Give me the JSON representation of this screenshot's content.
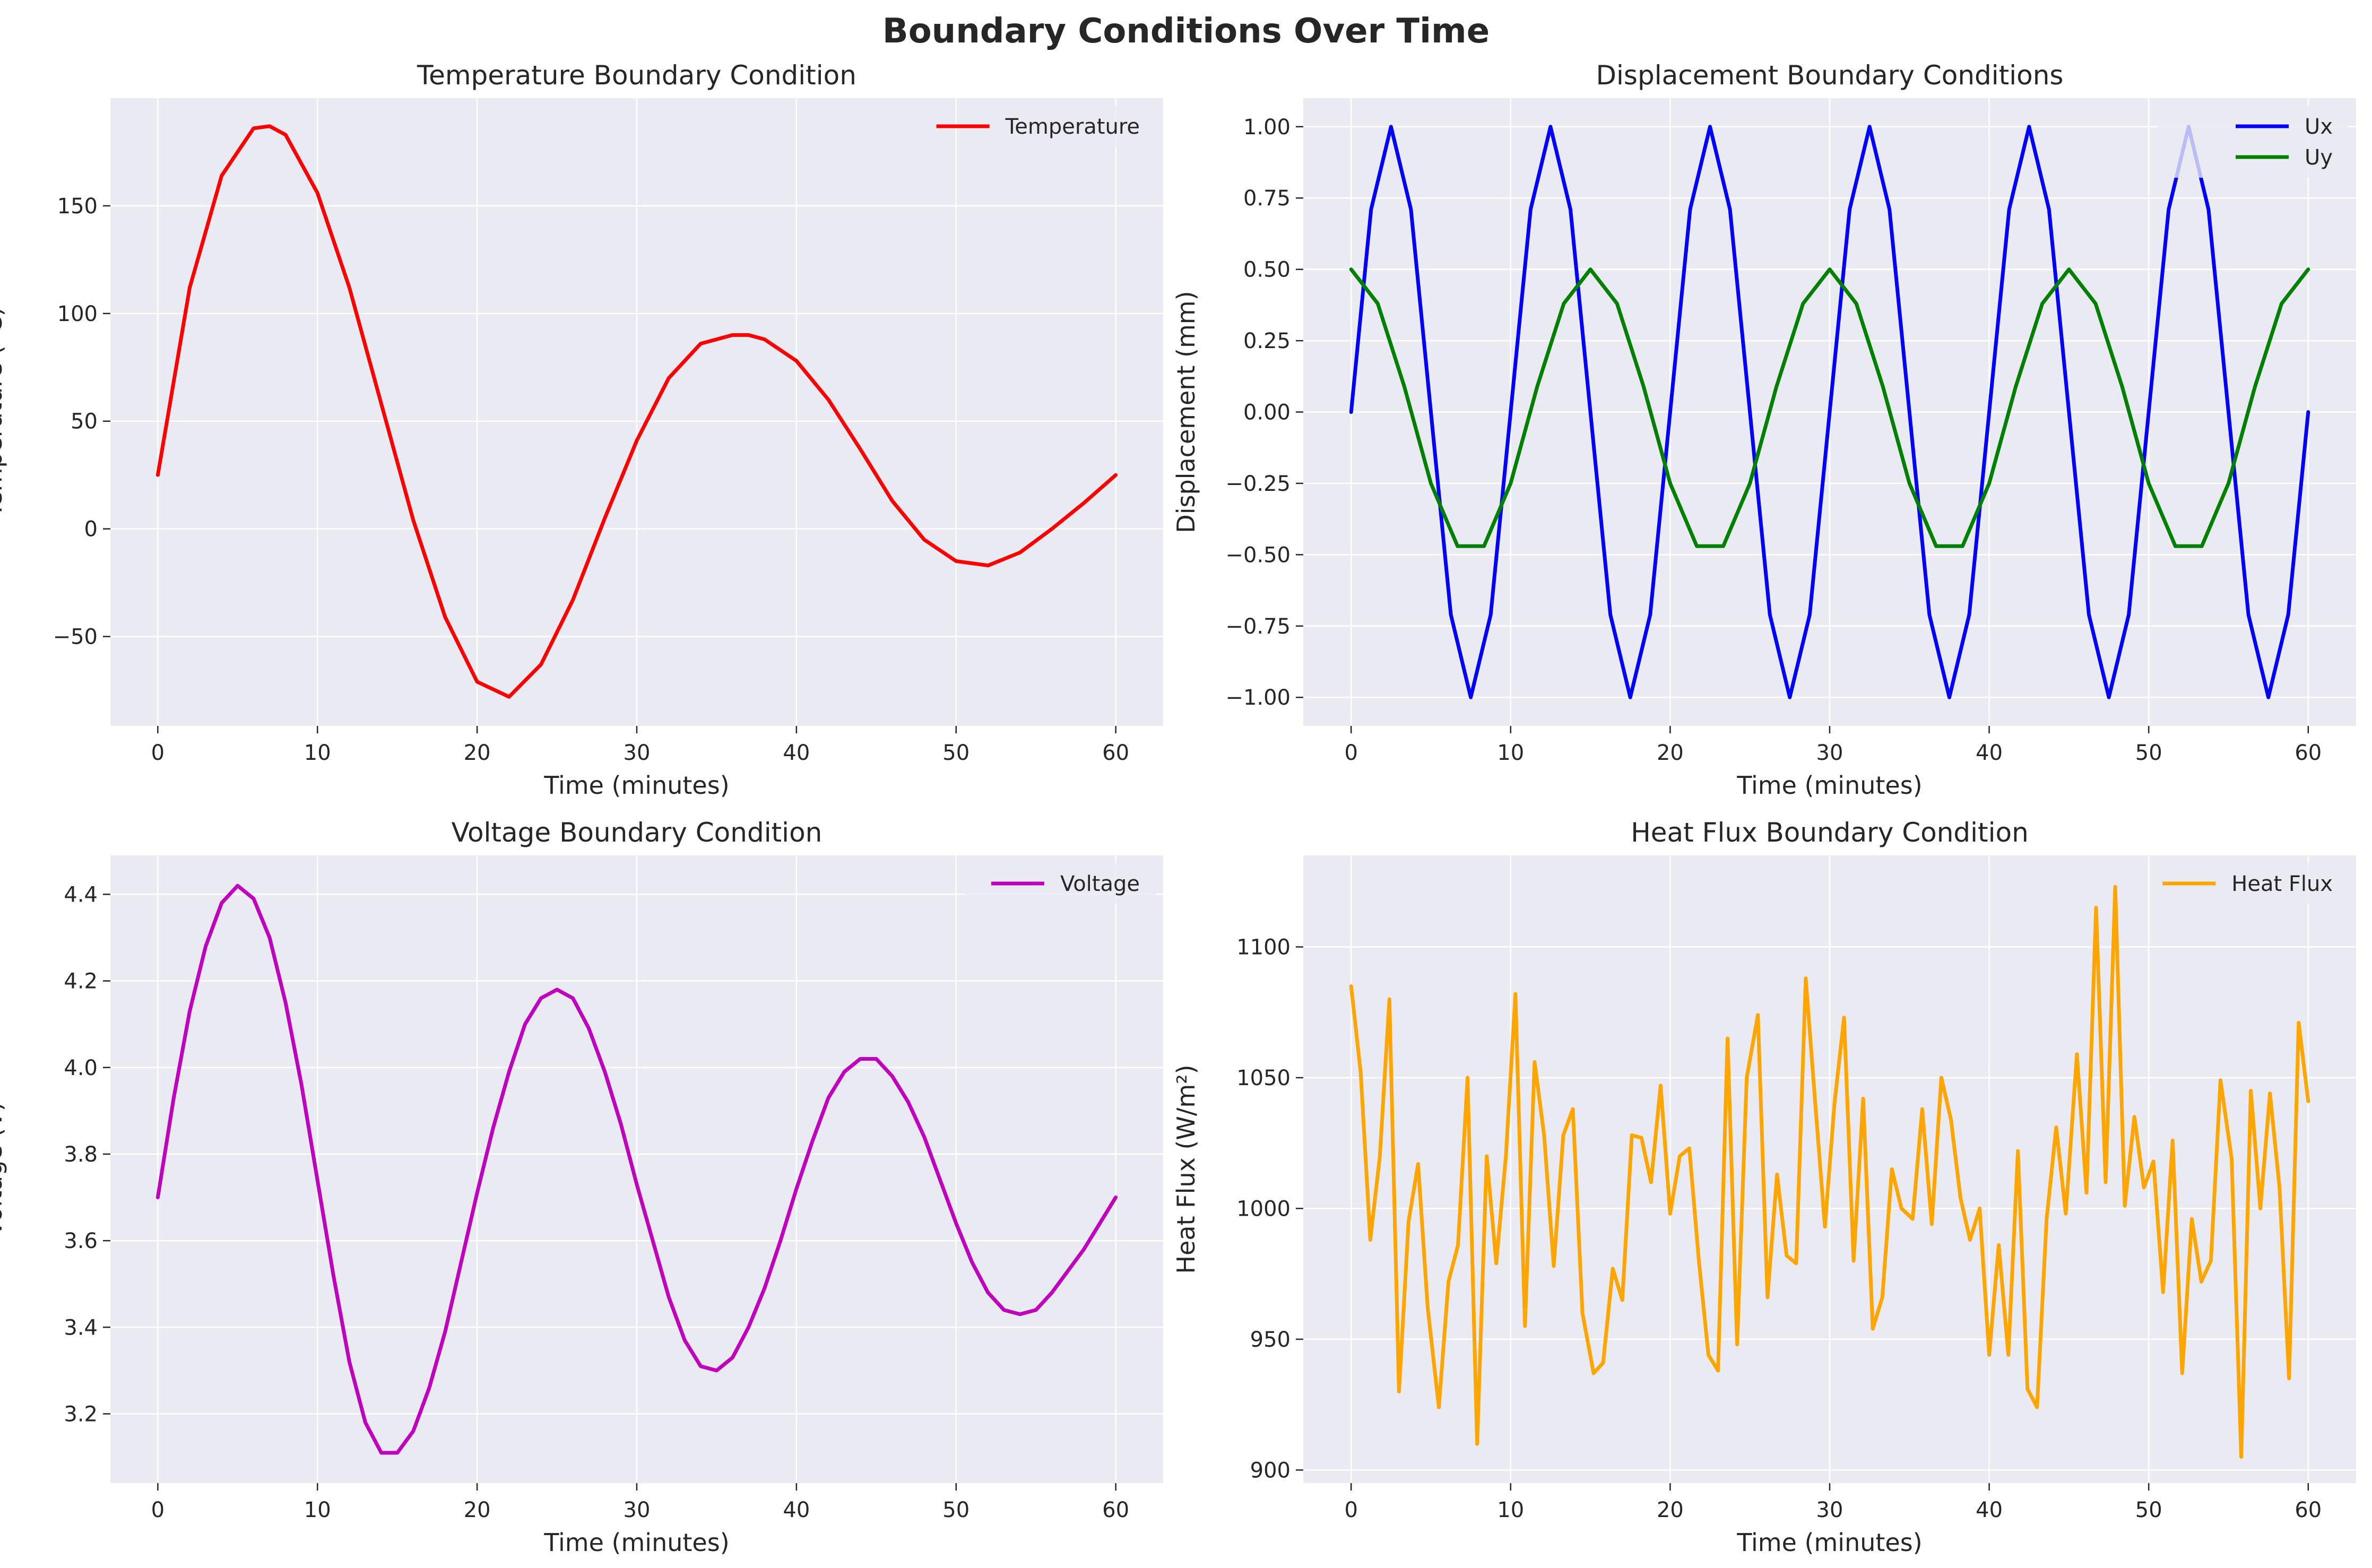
{
  "figure": {
    "title": "Boundary Conditions Over Time"
  },
  "chart_data": [
    {
      "type": "line",
      "title": "Temperature Boundary Condition",
      "xlabel": "Time (minutes)",
      "ylabel": "Temperature (°C)",
      "xlim": [
        -2.97,
        62.97
      ],
      "ylim": [
        -91.5,
        200
      ],
      "xticks": [
        0,
        10,
        20,
        30,
        40,
        50,
        60
      ],
      "xtick_labels": [
        "0",
        "10",
        "20",
        "30",
        "40",
        "50",
        "60"
      ],
      "yticks": [
        -50,
        0,
        50,
        100,
        150
      ],
      "ytick_labels": [
        "−50",
        "0",
        "50",
        "100",
        "150"
      ],
      "grid": true,
      "legend_loc": "upper right",
      "series": [
        {
          "name": "Temperature",
          "color": "#ff0000",
          "x": [
            0,
            2,
            4,
            6,
            7,
            8,
            10,
            12,
            14,
            16,
            18,
            20,
            22,
            24,
            26,
            28,
            30,
            32,
            34,
            36,
            37,
            38,
            40,
            42,
            44,
            46,
            48,
            50,
            52,
            54,
            56,
            58,
            60
          ],
          "y": [
            25,
            112,
            164,
            186,
            187,
            183,
            156,
            112,
            58,
            4,
            -41,
            -71,
            -78,
            -63,
            -33,
            5,
            41,
            70,
            86,
            90,
            90,
            88,
            78,
            60,
            37,
            13,
            -5,
            -15,
            -17,
            -11,
            0,
            12,
            25
          ]
        }
      ]
    },
    {
      "type": "line",
      "title": "Displacement Boundary Conditions",
      "xlabel": "Time (minutes)",
      "ylabel": "Displacement (mm)",
      "xlim": [
        -3,
        63
      ],
      "ylim": [
        -1.1,
        1.1
      ],
      "xticks": [
        0,
        10,
        20,
        30,
        40,
        50,
        60
      ],
      "xtick_labels": [
        "0",
        "10",
        "20",
        "30",
        "40",
        "50",
        "60"
      ],
      "yticks": [
        -1.0,
        -0.75,
        -0.5,
        -0.25,
        0.0,
        0.25,
        0.5,
        0.75,
        1.0
      ],
      "ytick_labels": [
        "−1.00",
        "−0.75",
        "−0.50",
        "−0.25",
        "0.00",
        "0.25",
        "0.50",
        "0.75",
        "1.00"
      ],
      "grid": true,
      "legend_loc": "upper right",
      "series": [
        {
          "name": "Ux",
          "color": "#0000ff",
          "x": [
            0,
            1.25,
            2.5,
            3.75,
            5,
            6.25,
            7.5,
            8.75,
            10,
            11.25,
            12.5,
            13.75,
            15,
            16.25,
            17.5,
            18.75,
            20,
            21.25,
            22.5,
            23.75,
            25,
            26.25,
            27.5,
            28.75,
            30,
            31.25,
            32.5,
            33.75,
            35,
            36.25,
            37.5,
            38.75,
            40,
            41.25,
            42.5,
            43.75,
            45,
            46.25,
            47.5,
            48.75,
            50,
            51.25,
            52.5,
            53.75,
            55,
            56.25,
            57.5,
            58.75,
            60
          ],
          "y": [
            0,
            0.71,
            1.0,
            0.71,
            0,
            -0.71,
            -1.0,
            -0.71,
            0,
            0.71,
            1.0,
            0.71,
            0,
            -0.71,
            -1.0,
            -0.71,
            0,
            0.71,
            1.0,
            0.71,
            0,
            -0.71,
            -1.0,
            -0.71,
            0,
            0.71,
            1.0,
            0.71,
            0,
            -0.71,
            -1.0,
            -0.71,
            0,
            0.71,
            1.0,
            0.71,
            0,
            -0.71,
            -1.0,
            -0.71,
            0,
            0.71,
            1.0,
            0.71,
            0,
            -0.71,
            -1.0,
            -0.71,
            0
          ]
        },
        {
          "name": "Uy",
          "color": "#008000",
          "x": [
            0,
            1.67,
            3.33,
            5,
            6.67,
            8.33,
            10,
            11.67,
            13.33,
            15,
            16.67,
            18.33,
            20,
            21.67,
            23.33,
            25,
            26.67,
            28.33,
            30,
            31.67,
            33.33,
            35,
            36.67,
            38.33,
            40,
            41.67,
            43.33,
            45,
            46.67,
            48.33,
            50,
            51.67,
            53.33,
            55,
            56.67,
            58.33,
            60
          ],
          "y": [
            0.5,
            0.38,
            0.09,
            -0.25,
            -0.47,
            -0.47,
            -0.25,
            0.09,
            0.38,
            0.5,
            0.38,
            0.09,
            -0.25,
            -0.47,
            -0.47,
            -0.25,
            0.09,
            0.38,
            0.5,
            0.38,
            0.09,
            -0.25,
            -0.47,
            -0.47,
            -0.25,
            0.09,
            0.38,
            0.5,
            0.38,
            0.09,
            -0.25,
            -0.47,
            -0.47,
            -0.25,
            0.09,
            0.38,
            0.5
          ]
        }
      ]
    },
    {
      "type": "line",
      "title": "Voltage Boundary Condition",
      "xlabel": "Time (minutes)",
      "ylabel": "Voltage (V)",
      "xlim": [
        -2.97,
        62.97
      ],
      "ylim": [
        3.04,
        4.49
      ],
      "xticks": [
        0,
        10,
        20,
        30,
        40,
        50,
        60
      ],
      "xtick_labels": [
        "0",
        "10",
        "20",
        "30",
        "40",
        "50",
        "60"
      ],
      "yticks": [
        3.2,
        3.4,
        3.6,
        3.8,
        4.0,
        4.2,
        4.4
      ],
      "ytick_labels": [
        "3.2",
        "3.4",
        "3.6",
        "3.8",
        "4.0",
        "4.2",
        "4.4"
      ],
      "grid": true,
      "legend_loc": "upper right",
      "series": [
        {
          "name": "Voltage",
          "color": "#bf00bf",
          "x": [
            0,
            1,
            2,
            3,
            4,
            5,
            6,
            7,
            8,
            9,
            10,
            11,
            12,
            13,
            14,
            15,
            16,
            17,
            18,
            19,
            20,
            21,
            22,
            23,
            24,
            25,
            26,
            27,
            28,
            29,
            30,
            31,
            32,
            33,
            34,
            35,
            36,
            37,
            38,
            39,
            40,
            41,
            42,
            43,
            44,
            45,
            46,
            47,
            48,
            49,
            50,
            51,
            52,
            53,
            54,
            55,
            56,
            57,
            58,
            59,
            60
          ],
          "y": [
            3.7,
            3.93,
            4.13,
            4.28,
            4.38,
            4.42,
            4.39,
            4.3,
            4.15,
            3.96,
            3.74,
            3.52,
            3.32,
            3.18,
            3.11,
            3.11,
            3.16,
            3.26,
            3.39,
            3.55,
            3.71,
            3.86,
            3.99,
            4.1,
            4.16,
            4.18,
            4.16,
            4.09,
            3.99,
            3.87,
            3.73,
            3.6,
            3.47,
            3.37,
            3.31,
            3.3,
            3.33,
            3.4,
            3.49,
            3.6,
            3.72,
            3.83,
            3.93,
            3.99,
            4.02,
            4.02,
            3.98,
            3.92,
            3.84,
            3.74,
            3.64,
            3.55,
            3.48,
            3.44,
            3.43,
            3.44,
            3.48,
            3.53,
            3.58,
            3.64,
            3.7
          ]
        }
      ]
    },
    {
      "type": "line",
      "title": "Heat Flux Boundary Condition",
      "xlabel": "Time (minutes)",
      "ylabel": "Heat Flux (W/m²)",
      "xlim": [
        -3,
        63
      ],
      "ylim": [
        895,
        1135
      ],
      "xticks": [
        0,
        10,
        20,
        30,
        40,
        50,
        60
      ],
      "xtick_labels": [
        "0",
        "10",
        "20",
        "30",
        "40",
        "50",
        "60"
      ],
      "yticks": [
        900,
        950,
        1000,
        1050,
        1100
      ],
      "ytick_labels": [
        "900",
        "950",
        "1000",
        "1050",
        "1100"
      ],
      "grid": true,
      "legend_loc": "upper right",
      "series": [
        {
          "name": "Heat Flux",
          "color": "#ffa500",
          "x": [
            0,
            0.6,
            1.2,
            1.8,
            2.4,
            3.0,
            3.6,
            4.2,
            4.8,
            5.5,
            6.1,
            6.7,
            7.3,
            7.9,
            8.5,
            9.1,
            9.7,
            10.3,
            10.9,
            11.5,
            12.1,
            12.7,
            13.3,
            13.9,
            14.5,
            15.2,
            15.8,
            16.4,
            17.0,
            17.6,
            18.2,
            18.8,
            19.4,
            20.0,
            20.6,
            21.2,
            21.8,
            22.4,
            23.0,
            23.6,
            24.2,
            24.8,
            25.5,
            26.1,
            26.7,
            27.3,
            27.9,
            28.5,
            29.1,
            29.7,
            30.3,
            30.9,
            31.5,
            32.1,
            32.7,
            33.3,
            33.9,
            34.5,
            35.2,
            35.8,
            36.4,
            37.0,
            37.6,
            38.2,
            38.8,
            39.4,
            40.0,
            40.6,
            41.2,
            41.8,
            42.4,
            43.0,
            43.6,
            44.2,
            44.8,
            45.5,
            46.1,
            46.7,
            47.3,
            47.9,
            48.5,
            49.1,
            49.7,
            50.3,
            50.9,
            51.5,
            52.1,
            52.7,
            53.3,
            53.9,
            54.5,
            55.2,
            55.8,
            56.4,
            57.0,
            57.6,
            58.2,
            58.8,
            59.4,
            60.0
          ],
          "y": [
            1085,
            1052,
            988,
            1020,
            1080,
            930,
            995,
            1017,
            962,
            924,
            972,
            986,
            1050,
            910,
            1020,
            979,
            1020,
            1082,
            955,
            1056,
            1028,
            978,
            1028,
            1038,
            960,
            937,
            941,
            977,
            965,
            1028,
            1027,
            1010,
            1047,
            998,
            1020,
            1023,
            980,
            944,
            938,
            1065,
            948,
            1050,
            1074,
            966,
            1013,
            982,
            979,
            1088,
            1040,
            993,
            1040,
            1073,
            980,
            1042,
            954,
            966,
            1015,
            1000,
            996,
            1038,
            994,
            1050,
            1034,
            1004,
            988,
            1000,
            944,
            986,
            944,
            1022,
            931,
            924,
            996,
            1031,
            998,
            1059,
            1006,
            1115,
            1010,
            1123,
            1001,
            1035,
            1008,
            1018,
            968,
            1026,
            937,
            996,
            972,
            980,
            1049,
            1019,
            905,
            1045,
            1000,
            1044,
            1008,
            935,
            1071,
            1041
          ]
        }
      ]
    }
  ]
}
